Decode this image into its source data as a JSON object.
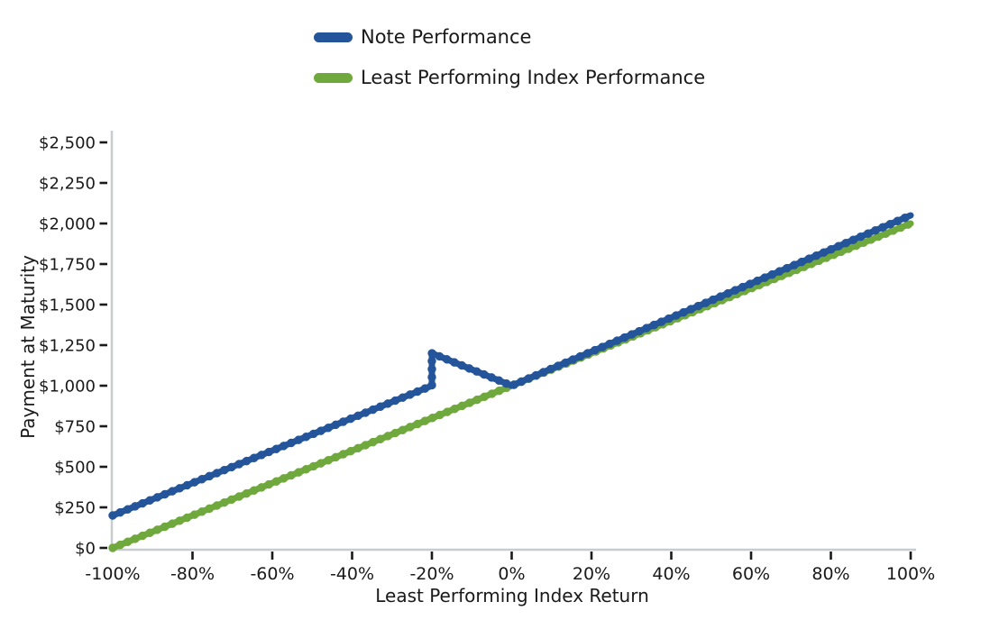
{
  "legend": {
    "items": [
      {
        "label": "Note Performance",
        "color": "#24549A"
      },
      {
        "label": "Least Performing Index Performance",
        "color": "#6FA83C"
      }
    ]
  },
  "chart_data": {
    "type": "line",
    "title": "",
    "xlabel": "Least Performing Index Return",
    "ylabel": "Payment at Maturity",
    "xlim": [
      -100,
      100
    ],
    "ylim": [
      0,
      2500
    ],
    "grid": false,
    "legend_position": "top-center",
    "x_ticks": {
      "values": [
        -100,
        -80,
        -60,
        -40,
        -20,
        0,
        20,
        40,
        60,
        80,
        100
      ],
      "labels": [
        "-100%",
        "-80%",
        "-60%",
        "-40%",
        "-20%",
        "0%",
        "20%",
        "40%",
        "60%",
        "80%",
        "100%"
      ]
    },
    "y_ticks": {
      "values": [
        0,
        250,
        500,
        750,
        1000,
        1250,
        1500,
        1750,
        2000,
        2250,
        2500
      ],
      "labels": [
        "$0",
        "$250",
        "$500",
        "$750",
        "$1,000",
        "$1,250",
        "$1,500",
        "$1,750",
        "$2,000",
        "$2,250",
        "$2,500"
      ]
    },
    "series": [
      {
        "name": "Note Performance",
        "color": "#24549A",
        "points": [
          [
            -100,
            200
          ],
          [
            -20,
            1000
          ],
          [
            -20,
            1200
          ],
          [
            0,
            1000
          ],
          [
            100,
            2050
          ]
        ]
      },
      {
        "name": "Least Performing Index Performance",
        "color": "#6FA83C",
        "points": [
          [
            -100,
            0
          ],
          [
            100,
            2000
          ]
        ]
      }
    ]
  }
}
